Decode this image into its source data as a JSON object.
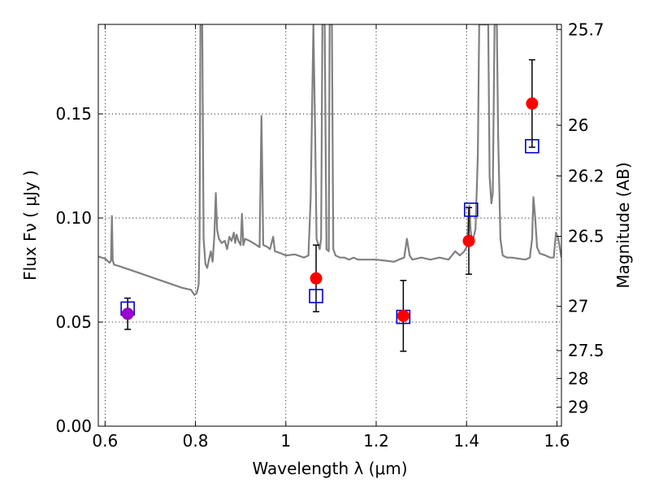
{
  "chart_data": {
    "type": "scatter",
    "title": "",
    "xlabel": "Wavelength  λ (μm)",
    "ylabel": "Flux  Fν  ( μJy )",
    "y2label": "Magnitude (AB)",
    "xlim": [
      0.585,
      1.61
    ],
    "ylim": [
      0.0,
      0.193
    ],
    "grid": true,
    "colors": {
      "spectrum": "#808080",
      "measured": "#ff0000",
      "model": "#0000cc",
      "first_point": "#9900cc",
      "errorbar": "#000000"
    },
    "x_ticks": [
      {
        "value": 0.6,
        "label": "0.6"
      },
      {
        "value": 0.8,
        "label": "0.8"
      },
      {
        "value": 1.0,
        "label": "1"
      },
      {
        "value": 1.2,
        "label": "1.2"
      },
      {
        "value": 1.4,
        "label": "1.4"
      },
      {
        "value": 1.6,
        "label": "1.6"
      }
    ],
    "y_ticks": [
      {
        "value": 0.0,
        "label": "0.00"
      },
      {
        "value": 0.05,
        "label": "0.05"
      },
      {
        "value": 0.1,
        "label": "0.10"
      },
      {
        "value": 0.15,
        "label": "0.15"
      }
    ],
    "y2_ticks": [
      {
        "value": 25.7,
        "label": "25.7"
      },
      {
        "value": 26.0,
        "label": "26"
      },
      {
        "value": 26.2,
        "label": "26.2"
      },
      {
        "value": 26.5,
        "label": "26.5"
      },
      {
        "value": 27.0,
        "label": "27"
      },
      {
        "value": 27.5,
        "label": "27.5"
      },
      {
        "value": 28.0,
        "label": "28"
      },
      {
        "value": 29.0,
        "label": "29"
      }
    ],
    "series": [
      {
        "kind": "measured",
        "points": [
          {
            "x": 0.65,
            "y": 0.054,
            "err": 0.0075
          },
          {
            "x": 1.067,
            "y": 0.071,
            "err": 0.016
          },
          {
            "x": 1.26,
            "y": 0.053,
            "err": 0.017
          },
          {
            "x": 1.405,
            "y": 0.089,
            "err": 0.016
          },
          {
            "x": 1.545,
            "y": 0.155,
            "err": 0.021
          }
        ]
      },
      {
        "kind": "model",
        "points": [
          {
            "x": 0.65,
            "y": 0.0565
          },
          {
            "x": 1.067,
            "y": 0.0625
          },
          {
            "x": 1.26,
            "y": 0.0525
          },
          {
            "x": 1.41,
            "y": 0.104
          },
          {
            "x": 1.545,
            "y": 0.1345
          }
        ]
      },
      {
        "kind": "spectrum",
        "points": [
          [
            0.585,
            0.0815
          ],
          [
            0.6,
            0.0805
          ],
          [
            0.61,
            0.0785
          ],
          [
            0.613,
            0.0795
          ],
          [
            0.615,
            0.101
          ],
          [
            0.617,
            0.0795
          ],
          [
            0.62,
            0.0775
          ],
          [
            0.63,
            0.077
          ],
          [
            0.65,
            0.0755
          ],
          [
            0.67,
            0.074
          ],
          [
            0.69,
            0.0725
          ],
          [
            0.71,
            0.071
          ],
          [
            0.73,
            0.0695
          ],
          [
            0.75,
            0.068
          ],
          [
            0.77,
            0.0665
          ],
          [
            0.79,
            0.0655
          ],
          [
            0.798,
            0.063
          ],
          [
            0.803,
            0.064
          ],
          [
            0.807,
            0.068
          ],
          [
            0.809,
            0.09
          ],
          [
            0.811,
            0.193
          ],
          [
            0.813,
            0.193
          ],
          [
            0.815,
            0.193
          ],
          [
            0.818,
            0.09
          ],
          [
            0.822,
            0.078
          ],
          [
            0.826,
            0.076
          ],
          [
            0.83,
            0.08
          ],
          [
            0.834,
            0.084
          ],
          [
            0.838,
            0.079
          ],
          [
            0.842,
            0.092
          ],
          [
            0.845,
            0.112
          ],
          [
            0.848,
            0.094
          ],
          [
            0.852,
            0.09
          ],
          [
            0.858,
            0.088
          ],
          [
            0.865,
            0.089
          ],
          [
            0.87,
            0.085
          ],
          [
            0.875,
            0.091
          ],
          [
            0.88,
            0.089
          ],
          [
            0.885,
            0.093
          ],
          [
            0.888,
            0.088
          ],
          [
            0.891,
            0.092
          ],
          [
            0.895,
            0.089
          ],
          [
            0.9,
            0.087
          ],
          [
            0.903,
            0.102
          ],
          [
            0.906,
            0.087
          ],
          [
            0.91,
            0.09
          ],
          [
            0.92,
            0.089
          ],
          [
            0.935,
            0.087
          ],
          [
            0.942,
            0.086
          ],
          [
            0.946,
            0.149
          ],
          [
            0.95,
            0.087
          ],
          [
            0.96,
            0.086
          ],
          [
            0.965,
            0.085
          ],
          [
            0.972,
            0.091
          ],
          [
            0.976,
            0.084
          ],
          [
            0.99,
            0.083
          ],
          [
            1.0,
            0.082
          ],
          [
            1.02,
            0.0825
          ],
          [
            1.04,
            0.081
          ],
          [
            1.05,
            0.082
          ],
          [
            1.055,
            0.11
          ],
          [
            1.058,
            0.15
          ],
          [
            1.061,
            0.193
          ],
          [
            1.065,
            0.14
          ],
          [
            1.068,
            0.09
          ],
          [
            1.075,
            0.085
          ],
          [
            1.078,
            0.09
          ],
          [
            1.081,
            0.193
          ],
          [
            1.086,
            0.193
          ],
          [
            1.09,
            0.085
          ],
          [
            1.095,
            0.084
          ],
          [
            1.097,
            0.193
          ],
          [
            1.102,
            0.193
          ],
          [
            1.105,
            0.085
          ],
          [
            1.11,
            0.082
          ],
          [
            1.12,
            0.081
          ],
          [
            1.13,
            0.081
          ],
          [
            1.14,
            0.08
          ],
          [
            1.15,
            0.081
          ],
          [
            1.16,
            0.08
          ],
          [
            1.18,
            0.08
          ],
          [
            1.2,
            0.08
          ],
          [
            1.22,
            0.0795
          ],
          [
            1.24,
            0.079
          ],
          [
            1.25,
            0.08
          ],
          [
            1.262,
            0.081
          ],
          [
            1.268,
            0.09
          ],
          [
            1.274,
            0.082
          ],
          [
            1.28,
            0.08
          ],
          [
            1.3,
            0.081
          ],
          [
            1.32,
            0.08
          ],
          [
            1.34,
            0.081
          ],
          [
            1.36,
            0.08
          ],
          [
            1.375,
            0.084
          ],
          [
            1.385,
            0.082
          ],
          [
            1.395,
            0.084
          ],
          [
            1.4,
            0.086
          ],
          [
            1.403,
            0.095
          ],
          [
            1.406,
            0.106
          ],
          [
            1.409,
            0.094
          ],
          [
            1.413,
            0.088
          ],
          [
            1.42,
            0.095
          ],
          [
            1.425,
            0.13
          ],
          [
            1.428,
            0.193
          ],
          [
            1.448,
            0.193
          ],
          [
            1.451,
            0.12
          ],
          [
            1.455,
            0.107
          ],
          [
            1.458,
            0.112
          ],
          [
            1.462,
            0.193
          ],
          [
            1.467,
            0.193
          ],
          [
            1.47,
            0.14
          ],
          [
            1.475,
            0.09
          ],
          [
            1.48,
            0.082
          ],
          [
            1.49,
            0.081
          ],
          [
            1.5,
            0.081
          ],
          [
            1.53,
            0.08
          ],
          [
            1.54,
            0.081
          ],
          [
            1.545,
            0.09
          ],
          [
            1.548,
            0.11
          ],
          [
            1.552,
            0.1
          ],
          [
            1.556,
            0.086
          ],
          [
            1.562,
            0.083
          ],
          [
            1.575,
            0.082
          ],
          [
            1.585,
            0.081
          ],
          [
            1.593,
            0.081
          ],
          [
            1.598,
            0.093
          ],
          [
            1.603,
            0.09
          ],
          [
            1.61,
            0.081
          ]
        ]
      }
    ]
  }
}
